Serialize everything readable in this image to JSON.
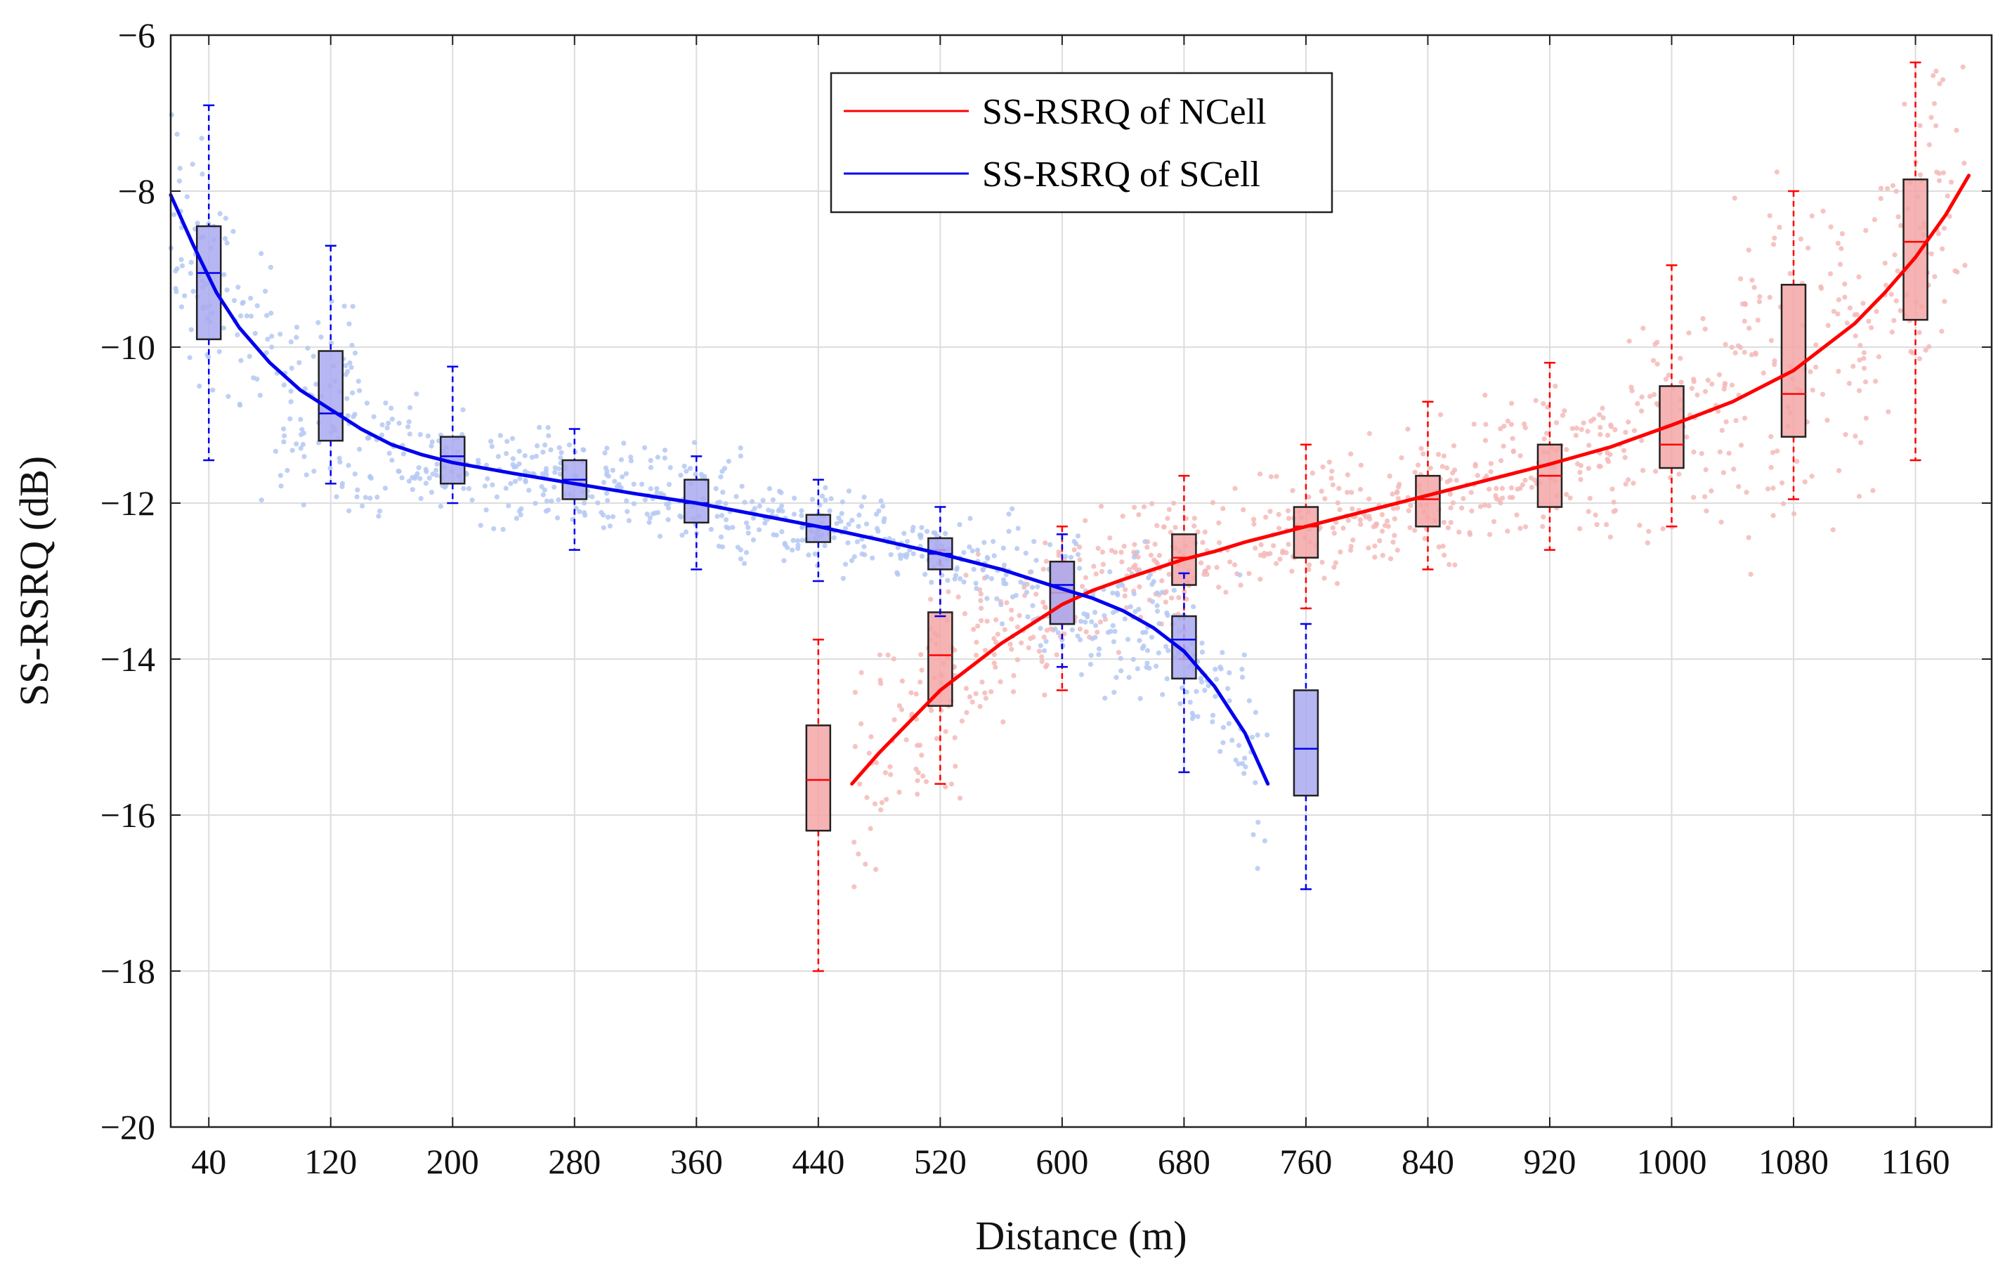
{
  "chart_data": {
    "type": "box+scatter+line",
    "xlabel": "Distance (m)",
    "ylabel": "SS-RSRQ (dB)",
    "xlim": [
      15,
      1210
    ],
    "ylim": [
      -20,
      -6
    ],
    "grid": true,
    "legend_position": "top-center",
    "x_ticks": [
      40,
      120,
      200,
      280,
      360,
      440,
      520,
      600,
      680,
      760,
      840,
      920,
      1000,
      1080,
      1160
    ],
    "x_tick_labels": [
      "40",
      "120",
      "200",
      "280",
      "360",
      "440",
      "520",
      "600",
      "680",
      "760",
      "840",
      "920",
      "1000",
      "1080",
      "1160"
    ],
    "y_ticks": [
      -20,
      -18,
      -16,
      -14,
      -12,
      -10,
      -8,
      -6
    ],
    "y_tick_labels": [
      "−20",
      "−18",
      "−16",
      "−14",
      "−12",
      "−10",
      "−8",
      "−6"
    ],
    "colors": {
      "ncell_line": "#ff0000",
      "ncell_box": "#f4a6a6",
      "ncell_scatter": "#f5b8b8",
      "scell_line": "#0000ee",
      "scell_box": "#a9a9f0",
      "scell_scatter": "#b4c8f2",
      "grid": "#dddddd"
    },
    "series": [
      {
        "name": "SS-RSRQ of NCell",
        "legend_label": "SS-RSRQ of NCell",
        "fit_curve": {
          "x": [
            462,
            480,
            500,
            520,
            540,
            560,
            580,
            600,
            620,
            640,
            660,
            680,
            700,
            720,
            740,
            760,
            800,
            840,
            880,
            920,
            960,
            1000,
            1040,
            1080,
            1100,
            1120,
            1140,
            1160,
            1180,
            1195
          ],
          "y": [
            -15.6,
            -15.2,
            -14.8,
            -14.4,
            -14.1,
            -13.8,
            -13.55,
            -13.3,
            -13.12,
            -12.98,
            -12.85,
            -12.72,
            -12.62,
            -12.5,
            -12.4,
            -12.3,
            -12.1,
            -11.9,
            -11.7,
            -11.5,
            -11.28,
            -11.0,
            -10.7,
            -10.3,
            -10.0,
            -9.7,
            -9.3,
            -8.85,
            -8.3,
            -7.8
          ]
        },
        "boxes": [
          {
            "x": 440,
            "whisker_low": -18.0,
            "q1": -16.2,
            "median": -15.55,
            "q3": -14.85,
            "whisker_high": -13.75
          },
          {
            "x": 520,
            "whisker_low": -15.6,
            "q1": -14.6,
            "median": -13.95,
            "q3": -13.4,
            "whisker_high": -12.6
          },
          {
            "x": 600,
            "whisker_low": -14.4,
            "q1": -13.55,
            "median": -13.15,
            "q3": -12.75,
            "whisker_high": -12.3
          },
          {
            "x": 680,
            "whisker_low": -14.0,
            "q1": -13.05,
            "median": -12.7,
            "q3": -12.4,
            "whisker_high": -11.65
          },
          {
            "x": 760,
            "whisker_low": -13.35,
            "q1": -12.7,
            "median": -12.3,
            "q3": -12.05,
            "whisker_high": -11.25
          },
          {
            "x": 840,
            "whisker_low": -12.85,
            "q1": -12.3,
            "median": -11.95,
            "q3": -11.65,
            "whisker_high": -10.7
          },
          {
            "x": 920,
            "whisker_low": -12.6,
            "q1": -12.05,
            "median": -11.65,
            "q3": -11.25,
            "whisker_high": -10.2
          },
          {
            "x": 1000,
            "whisker_low": -12.3,
            "q1": -11.55,
            "median": -11.25,
            "q3": -10.5,
            "whisker_high": -8.95
          },
          {
            "x": 1080,
            "whisker_low": -11.95,
            "q1": -11.15,
            "median": -10.6,
            "q3": -9.2,
            "whisker_high": -8.0
          },
          {
            "x": 1160,
            "whisker_low": -11.45,
            "q1": -9.65,
            "median": -8.65,
            "q3": -7.85,
            "whisker_high": -6.35
          }
        ]
      },
      {
        "name": "SS-RSRQ of SCell",
        "legend_label": "SS-RSRQ of SCell",
        "fit_curve": {
          "x": [
            15,
            30,
            45,
            60,
            80,
            100,
            120,
            140,
            160,
            180,
            200,
            240,
            280,
            320,
            360,
            400,
            440,
            480,
            520,
            560,
            600,
            620,
            640,
            660,
            680,
            700,
            720,
            735
          ],
          "y": [
            -8.05,
            -8.7,
            -9.3,
            -9.75,
            -10.2,
            -10.55,
            -10.8,
            -11.05,
            -11.25,
            -11.38,
            -11.48,
            -11.62,
            -11.75,
            -11.88,
            -12.0,
            -12.15,
            -12.3,
            -12.47,
            -12.65,
            -12.85,
            -13.1,
            -13.22,
            -13.38,
            -13.6,
            -13.9,
            -14.35,
            -14.95,
            -15.6
          ]
        },
        "boxes": [
          {
            "x": 40,
            "whisker_low": -11.45,
            "q1": -9.9,
            "median": -9.05,
            "q3": -8.45,
            "whisker_high": -6.9
          },
          {
            "x": 120,
            "whisker_low": -11.75,
            "q1": -11.2,
            "median": -10.85,
            "q3": -10.05,
            "whisker_high": -8.7
          },
          {
            "x": 200,
            "whisker_low": -12.0,
            "q1": -11.75,
            "median": -11.4,
            "q3": -11.15,
            "whisker_high": -10.25
          },
          {
            "x": 280,
            "whisker_low": -12.6,
            "q1": -11.95,
            "median": -11.7,
            "q3": -11.45,
            "whisker_high": -11.05
          },
          {
            "x": 360,
            "whisker_low": -12.85,
            "q1": -12.25,
            "median": -12.0,
            "q3": -11.7,
            "whisker_high": -11.4
          },
          {
            "x": 440,
            "whisker_low": -13.0,
            "q1": -12.5,
            "median": -12.3,
            "q3": -12.15,
            "whisker_high": -11.7
          },
          {
            "x": 520,
            "whisker_low": -13.45,
            "q1": -12.85,
            "median": -12.65,
            "q3": -12.45,
            "whisker_high": -12.05
          },
          {
            "x": 600,
            "whisker_low": -14.1,
            "q1": -13.55,
            "median": -13.05,
            "q3": -12.75,
            "whisker_high": -12.4
          },
          {
            "x": 680,
            "whisker_low": -15.45,
            "q1": -14.25,
            "median": -13.75,
            "q3": -13.45,
            "whisker_high": -12.9
          },
          {
            "x": 760,
            "whisker_low": -16.95,
            "q1": -15.75,
            "median": -15.15,
            "q3": -14.4,
            "whisker_high": -13.55
          }
        ]
      }
    ]
  }
}
